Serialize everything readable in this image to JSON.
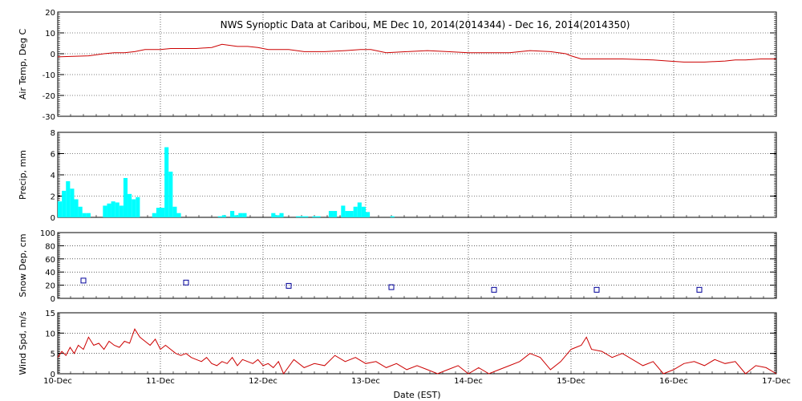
{
  "chart_data": {
    "title": "NWS Synoptic Data at Caribou, ME    Dec 10, 2014(2014344) - Dec 16, 2014(2014350)",
    "xlabel": "Date (EST)",
    "x_ticks": [
      "10-Dec",
      "11-Dec",
      "12-Dec",
      "13-Dec",
      "14-Dec",
      "15-Dec",
      "16-Dec",
      "17-Dec"
    ],
    "x_range_days": [
      0,
      7
    ],
    "grid": true,
    "panels": [
      {
        "type": "line",
        "ylabel": "Air Temp, Deg C",
        "ylim": [
          -30,
          20
        ],
        "yticks": [
          -30,
          -20,
          -10,
          0,
          10,
          20
        ],
        "color": "#cc0000",
        "series": [
          {
            "x": [
              0,
              0.3,
              0.45,
              0.55,
              0.65,
              0.75,
              0.85,
              0.95,
              1.0,
              1.1,
              1.2,
              1.35,
              1.5,
              1.6,
              1.75,
              1.85,
              1.95,
              2.05,
              2.15,
              2.25,
              2.4,
              2.6,
              2.8,
              2.95,
              3.05,
              3.2,
              3.4,
              3.6,
              3.8,
              4.0,
              4.2,
              4.4,
              4.6,
              4.8,
              4.95,
              5.0,
              5.1,
              5.3,
              5.5,
              5.8,
              5.95,
              6.1,
              6.3,
              6.5,
              6.6,
              6.7,
              6.85,
              7.0
            ],
            "y": [
              -1.5,
              -1,
              0,
              0.5,
              0.5,
              1,
              2,
              2,
              2,
              2.5,
              2.5,
              2.5,
              3,
              4.5,
              3.5,
              3.5,
              3,
              2,
              2,
              2,
              1,
              1,
              1.5,
              2,
              2,
              0.5,
              1,
              1.5,
              1,
              0.5,
              0.5,
              0.5,
              1.5,
              1,
              0,
              -1,
              -2.5,
              -2.5,
              -2.5,
              -3,
              -3.5,
              -4,
              -4,
              -3.5,
              -3,
              -3,
              -2.5,
              -2.5
            ]
          }
        ]
      },
      {
        "type": "bar",
        "ylabel": "Precip, mm",
        "ylim": [
          0,
          8
        ],
        "yticks": [
          0,
          2,
          4,
          6,
          8
        ],
        "color": "#00ffff",
        "bars": [
          [
            0.0,
            1.5
          ],
          [
            0.04,
            2.5
          ],
          [
            0.08,
            3.4
          ],
          [
            0.12,
            2.7
          ],
          [
            0.16,
            1.7
          ],
          [
            0.2,
            1.0
          ],
          [
            0.24,
            0.4
          ],
          [
            0.28,
            0.4
          ],
          [
            0.44,
            1.1
          ],
          [
            0.48,
            1.3
          ],
          [
            0.52,
            1.5
          ],
          [
            0.56,
            1.4
          ],
          [
            0.6,
            1.1
          ],
          [
            0.64,
            3.7
          ],
          [
            0.68,
            2.2
          ],
          [
            0.72,
            1.7
          ],
          [
            0.76,
            1.9
          ],
          [
            0.92,
            0.4
          ],
          [
            0.96,
            0.9
          ],
          [
            1.0,
            0.9
          ],
          [
            1.04,
            6.6
          ],
          [
            1.08,
            4.3
          ],
          [
            1.12,
            1.0
          ],
          [
            1.16,
            0.4
          ],
          [
            1.56,
            0.1
          ],
          [
            1.6,
            0.2
          ],
          [
            1.68,
            0.6
          ],
          [
            1.72,
            0.2
          ],
          [
            1.76,
            0.4
          ],
          [
            1.8,
            0.4
          ],
          [
            2.08,
            0.4
          ],
          [
            2.12,
            0.2
          ],
          [
            2.16,
            0.4
          ],
          [
            2.32,
            0.1
          ],
          [
            2.36,
            0.1
          ],
          [
            2.4,
            0.1
          ],
          [
            2.48,
            0.1
          ],
          [
            2.52,
            0.1
          ],
          [
            2.64,
            0.6
          ],
          [
            2.68,
            0.6
          ],
          [
            2.76,
            1.1
          ],
          [
            2.8,
            0.6
          ],
          [
            2.84,
            0.6
          ],
          [
            2.88,
            1.0
          ],
          [
            2.92,
            1.4
          ],
          [
            2.96,
            1.0
          ],
          [
            3.0,
            0.5
          ],
          [
            3.24,
            0.1
          ]
        ]
      },
      {
        "type": "scatter",
        "ylabel": "Snow Dep, cm",
        "ylim": [
          0,
          100
        ],
        "yticks": [
          0,
          20,
          40,
          60,
          80,
          100
        ],
        "color": "#000099",
        "points": {
          "x": [
            0.25,
            1.25,
            2.25,
            3.25,
            4.25,
            5.25,
            6.25
          ],
          "y": [
            27,
            24,
            19,
            17,
            13,
            13,
            13
          ]
        }
      },
      {
        "type": "line",
        "ylabel": "Wind Spd, m/s",
        "ylim": [
          0,
          15
        ],
        "yticks": [
          0,
          5,
          10,
          15
        ],
        "color": "#cc0000",
        "series": [
          {
            "x": [
              0,
              0.04,
              0.08,
              0.12,
              0.16,
              0.2,
              0.25,
              0.3,
              0.35,
              0.4,
              0.45,
              0.5,
              0.55,
              0.6,
              0.65,
              0.7,
              0.75,
              0.8,
              0.85,
              0.9,
              0.95,
              1.0,
              1.05,
              1.1,
              1.15,
              1.2,
              1.25,
              1.3,
              1.35,
              1.4,
              1.45,
              1.5,
              1.55,
              1.6,
              1.65,
              1.7,
              1.75,
              1.8,
              1.85,
              1.9,
              1.95,
              2.0,
              2.05,
              2.1,
              2.15,
              2.2,
              2.3,
              2.4,
              2.5,
              2.6,
              2.7,
              2.8,
              2.9,
              3.0,
              3.1,
              3.2,
              3.3,
              3.4,
              3.5,
              3.6,
              3.7,
              3.8,
              3.9,
              4.0,
              4.1,
              4.2,
              4.3,
              4.4,
              4.5,
              4.6,
              4.7,
              4.8,
              4.9,
              5.0,
              5.1,
              5.15,
              5.2,
              5.3,
              5.4,
              5.5,
              5.6,
              5.7,
              5.8,
              5.9,
              6.0,
              6.1,
              6.2,
              6.3,
              6.4,
              6.5,
              6.6,
              6.7,
              6.8,
              6.9,
              7.0
            ],
            "y": [
              4,
              5.5,
              4.5,
              6.5,
              5,
              7,
              6,
              9,
              7,
              7.5,
              6,
              8,
              7,
              6.5,
              8,
              7.5,
              11,
              9,
              8,
              7,
              8.5,
              6,
              7,
              6,
              5,
              4.5,
              5,
              4,
              3.5,
              3,
              4,
              2.5,
              2,
              3,
              2.5,
              4,
              2,
              3.5,
              3,
              2.5,
              3.5,
              2,
              2.5,
              1.5,
              3,
              0,
              3.5,
              1.5,
              2.5,
              2,
              4.5,
              3,
              4,
              2.5,
              3,
              1.5,
              2.5,
              1,
              2,
              1,
              0,
              1,
              2,
              0,
              1.5,
              0,
              1,
              2,
              3,
              5,
              4,
              1,
              3,
              6,
              7,
              9,
              6,
              5.5,
              4,
              5,
              3.5,
              2,
              3,
              0,
              1,
              2.5,
              3,
              2,
              3.5,
              2.5,
              3,
              0,
              2,
              1.5,
              0
            ]
          }
        ]
      }
    ]
  }
}
